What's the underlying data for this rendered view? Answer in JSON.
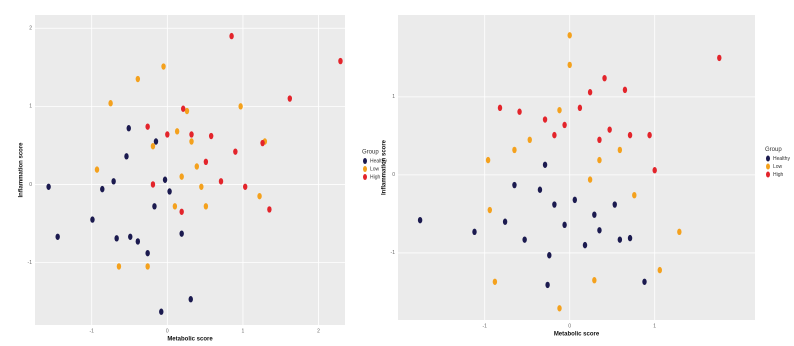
{
  "chart_data": [
    {
      "type": "scatter",
      "x_label": "Metabolic score",
      "y_label": "Inflammation score",
      "legend_title": "Group",
      "xlim": [
        -1.75,
        2.35
      ],
      "ylim": [
        -1.8,
        2.17
      ],
      "xticks": [
        -1,
        0,
        1,
        2
      ],
      "yticks": [
        -1,
        0,
        1,
        2
      ],
      "grid": true,
      "series": [
        {
          "name": "Healthy",
          "color": "#1b1a4f",
          "x": [
            -1.57,
            -1.45,
            -0.99,
            -0.86,
            -0.71,
            -0.67,
            -0.54,
            -0.51,
            -0.49,
            -0.39,
            -0.26,
            -0.17,
            -0.15,
            -0.08,
            -0.03,
            0.03,
            0.19,
            0.31
          ],
          "y": [
            -0.03,
            -0.67,
            -0.45,
            -0.06,
            0.04,
            -0.69,
            0.36,
            0.72,
            -0.67,
            -0.73,
            -0.88,
            -0.28,
            0.55,
            -1.63,
            0.06,
            -0.09,
            -0.63,
            -1.47
          ]
        },
        {
          "name": "Low",
          "color": "#f4a11d",
          "x": [
            -0.75,
            -0.39,
            -0.05,
            -0.93,
            -0.64,
            -0.26,
            -0.19,
            0.13,
            0.19,
            0.32,
            0.39,
            0.45,
            0.51,
            0.97,
            1.22,
            1.29,
            0.1,
            0.26
          ],
          "y": [
            1.04,
            1.35,
            1.51,
            0.19,
            -1.05,
            -1.05,
            0.49,
            0.68,
            0.1,
            0.55,
            0.23,
            -0.03,
            -0.28,
            1.0,
            -0.15,
            0.55,
            -0.28,
            0.94
          ]
        },
        {
          "name": "High",
          "color": "#e3242b",
          "x": [
            0.85,
            2.29,
            1.62,
            0.21,
            -0.26,
            0.0,
            0.32,
            0.58,
            0.9,
            1.26,
            0.71,
            1.03,
            1.35,
            -0.19,
            0.19,
            0.51
          ],
          "y": [
            1.9,
            1.58,
            1.1,
            0.97,
            0.74,
            0.64,
            0.64,
            0.62,
            0.42,
            0.53,
            0.04,
            -0.03,
            -0.32,
            0.0,
            -0.35,
            0.29
          ]
        }
      ]
    },
    {
      "type": "scatter",
      "x_label": "Metabolic score",
      "y_label": "Inflammation score",
      "legend_title": "Group",
      "xlim": [
        -2.02,
        2.18
      ],
      "ylim": [
        -1.86,
        2.05
      ],
      "xticks": [
        -1,
        0,
        1
      ],
      "yticks": [
        -1,
        0,
        1
      ],
      "grid": true,
      "series": [
        {
          "name": "Healthy",
          "color": "#1b1a4f",
          "x": [
            -1.76,
            -1.12,
            -0.76,
            -0.65,
            -0.53,
            -0.35,
            -0.29,
            -0.24,
            -0.18,
            -0.06,
            0.06,
            0.18,
            0.29,
            0.35,
            0.53,
            0.59,
            0.71,
            0.88,
            -0.26
          ],
          "y": [
            -0.58,
            -0.73,
            -0.6,
            -0.13,
            -0.83,
            -0.19,
            0.13,
            -1.03,
            -0.38,
            -0.64,
            -0.32,
            -0.9,
            -0.51,
            -0.71,
            -0.38,
            -0.83,
            -0.81,
            -1.37,
            -1.41
          ]
        },
        {
          "name": "Low",
          "color": "#f4a11d",
          "x": [
            -0.96,
            -0.94,
            -0.88,
            -0.65,
            -0.47,
            -0.12,
            0,
            0,
            -0.12,
            0.24,
            0.29,
            0.35,
            0.59,
            0.76,
            1.06,
            1.29
          ],
          "y": [
            0.19,
            -0.45,
            -1.37,
            0.32,
            0.45,
            -1.71,
            1.79,
            1.41,
            0.83,
            -0.06,
            -1.35,
            0.19,
            0.32,
            -0.26,
            -1.22,
            -0.73
          ]
        },
        {
          "name": "High",
          "color": "#e3242b",
          "x": [
            -0.82,
            -0.59,
            -0.29,
            -0.18,
            -0.06,
            0.12,
            0.24,
            0.41,
            0.65,
            0.47,
            0.71,
            0.94,
            1.76,
            1.0,
            0.35
          ],
          "y": [
            0.86,
            0.81,
            0.71,
            0.51,
            0.64,
            0.86,
            1.06,
            1.24,
            1.09,
            0.58,
            0.51,
            0.51,
            1.5,
            0.06,
            0.45
          ]
        }
      ]
    }
  ]
}
